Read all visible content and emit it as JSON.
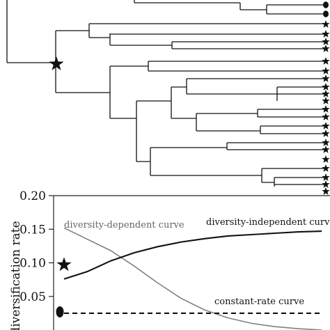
{
  "tree": {
    "tip_markers": [
      "circle",
      "circle",
      "star",
      "star",
      "star",
      "star",
      "star",
      "star",
      "star",
      "star",
      "star",
      "star",
      "star",
      "star",
      "star",
      "star",
      "star",
      "star",
      "star",
      "star",
      "star",
      "star",
      "star"
    ],
    "node_marker": "star",
    "colors": {
      "lines": "#111111",
      "markers": "#111111"
    }
  },
  "chart_data": {
    "type": "line",
    "title": "",
    "xlabel": "",
    "ylabel": "diversification rate",
    "ylim": [
      0,
      0.2
    ],
    "yticks": [
      "0.20",
      "0.15",
      "0.10",
      "0.05"
    ],
    "grid": false,
    "series": [
      {
        "name": "diversity-dependent curve",
        "color": "#808080",
        "values": [
          0.152,
          0.135,
          0.118,
          0.095,
          0.07,
          0.047,
          0.03,
          0.018,
          0.01,
          0.005,
          0.002,
          0.0
        ]
      },
      {
        "name": "diversity-independent curve",
        "color": "#111111",
        "values": [
          0.076,
          0.087,
          0.103,
          0.115,
          0.124,
          0.131,
          0.136,
          0.14,
          0.142,
          0.144,
          0.146,
          0.147
        ]
      },
      {
        "name": "constant-rate curve",
        "color": "#111111",
        "values": [
          0.025,
          0.025,
          0.025,
          0.025,
          0.025,
          0.025,
          0.025,
          0.025,
          0.025,
          0.025,
          0.025,
          0.025
        ]
      }
    ],
    "markers": [
      {
        "shape": "star",
        "y": 0.097
      },
      {
        "shape": "circle",
        "y": 0.027
      }
    ]
  }
}
